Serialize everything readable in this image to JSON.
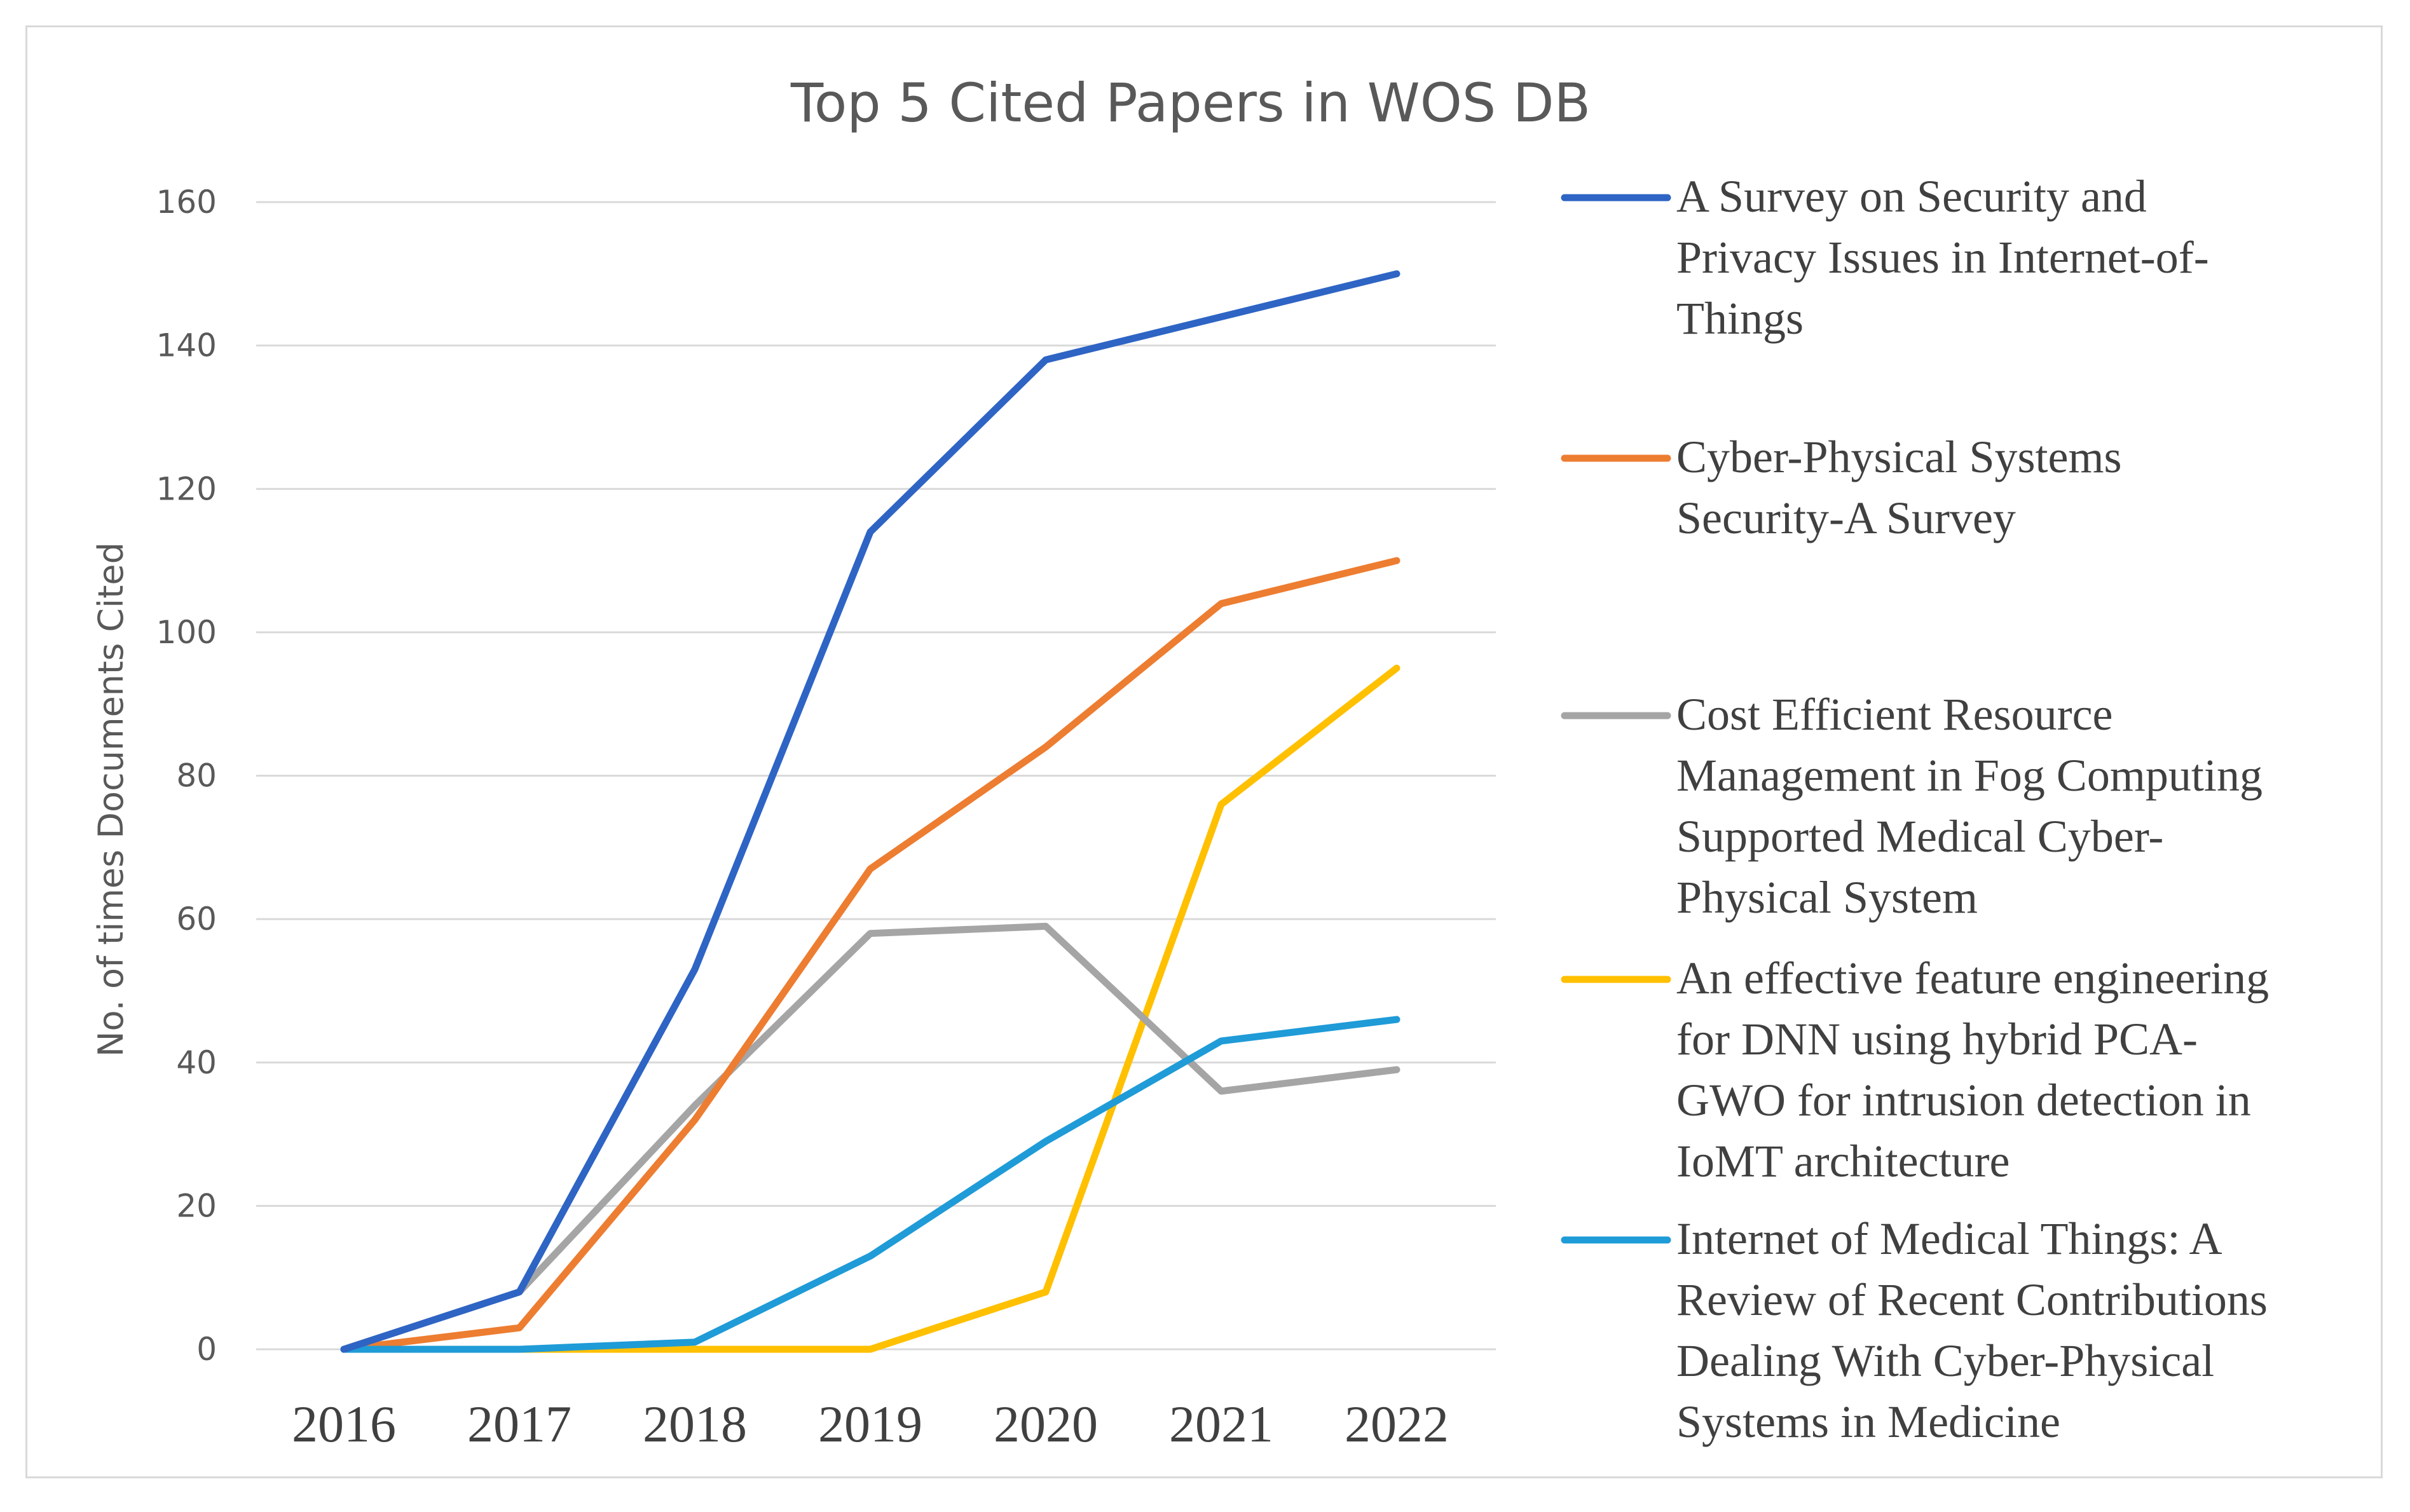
{
  "chart_data": {
    "type": "line",
    "title": "Top 5 Cited Papers in WOS DB",
    "xlabel": "",
    "ylabel": "No. of times Documents Cited",
    "categories": [
      "2016",
      "2017",
      "2018",
      "2019",
      "2020",
      "2021",
      "2022"
    ],
    "ylim": [
      0,
      160
    ],
    "yticks": [
      "0",
      "20",
      "40",
      "60",
      "80",
      "100",
      "120",
      "140",
      "160"
    ],
    "grid": true,
    "legend_position": "right",
    "series": [
      {
        "name": "A Survey on Security and Privacy Issues in Internet-of-Things",
        "legend_lines": [
          "A Survey on Security and",
          "Privacy Issues in Internet-of-",
          "Things"
        ],
        "color": "#2e64c4",
        "values": [
          0,
          8,
          53,
          114,
          138,
          144,
          150
        ]
      },
      {
        "name": "Cyber-Physical Systems Security-A Survey",
        "legend_lines": [
          "Cyber-Physical Systems",
          "Security-A Survey"
        ],
        "color": "#ed7d31",
        "values": [
          0,
          3,
          32,
          67,
          84,
          104,
          110
        ]
      },
      {
        "name": "Cost Efficient Resource Management in Fog Computing Supported Medical Cyber-Physical System",
        "legend_lines": [
          "Cost Efficient Resource",
          "Management in Fog Computing",
          "Supported Medical Cyber-",
          "Physical System"
        ],
        "color": "#a5a5a5",
        "values": [
          0,
          8,
          34,
          58,
          59,
          36,
          39
        ]
      },
      {
        "name": "An effective feature engineering for DNN using hybrid PCA-GWO for intrusion detection in IoMT architecture",
        "legend_lines": [
          "An effective feature engineering",
          "for DNN using hybrid PCA-",
          "GWO for intrusion detection in",
          "IoMT architecture"
        ],
        "color": "#ffc000",
        "values": [
          0,
          0,
          0,
          0,
          8,
          76,
          95
        ]
      },
      {
        "name": "Internet of Medical Things: A Review of Recent Contributions Dealing With Cyber-Physical Systems in Medicine",
        "legend_lines": [
          "Internet of Medical Things: A",
          "Review of Recent Contributions",
          "Dealing With Cyber-Physical",
          "Systems in Medicine"
        ],
        "color": "#1f9bd7",
        "values": [
          0,
          0,
          1,
          13,
          29,
          43,
          46
        ]
      }
    ]
  }
}
